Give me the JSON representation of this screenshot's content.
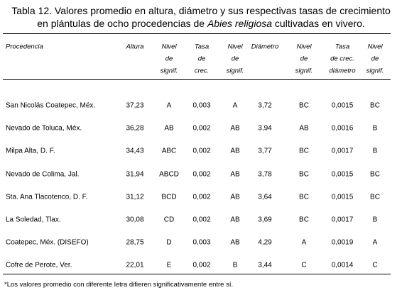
{
  "title": {
    "before": "Tabla 12. Valores promedio en altura, diámetro y sus respectivas tasas de crecimiento en plántulas de ocho procedencias de ",
    "italic": "Abies religiosa",
    "after": " cultivadas en vivero."
  },
  "table": {
    "header": [
      [
        "Procedencia"
      ],
      [
        "Altura"
      ],
      [
        "Nivel",
        "de",
        "signif."
      ],
      [
        "Tasa",
        "de",
        "crec."
      ],
      [
        "Nivel",
        "de",
        "signif."
      ],
      [
        "Diámetro"
      ],
      [
        "Nivel",
        "de",
        "signif."
      ],
      [
        "Tasa",
        "de crec.",
        "diámetro"
      ],
      [
        "Nivel",
        "de",
        "signif."
      ]
    ],
    "rows": [
      [
        "San Nicolás Coatepec, Méx.",
        "37,23",
        "A",
        "0,003",
        "A",
        "3,72",
        "BC",
        "0,0015",
        "BC"
      ],
      [
        "Nevado de Toluca, Méx.",
        "36,28",
        "AB",
        "0,002",
        "AB",
        "3,94",
        "AB",
        "0,0016",
        "B"
      ],
      [
        "Milpa Alta, D. F.",
        "34,43",
        "ABC",
        "0,002",
        "AB",
        "3,77",
        "BC",
        "0,0017",
        "B"
      ],
      [
        "Nevado de Colima, Jal.",
        "31,94",
        "ABCD",
        "0,002",
        "AB",
        "3,78",
        "BC",
        "0,0015",
        "BC"
      ],
      [
        "Sta. Ana Tlacotenco, D. F.",
        "31,12",
        "BCD",
        "0,002",
        "AB",
        "3,64",
        "BC",
        "0,0015",
        "BC"
      ],
      [
        "La Soledad, Tlax.",
        "30,08",
        "CD",
        "0,002",
        "AB",
        "3,69",
        "BC",
        "0,0017",
        "B"
      ],
      [
        "Coatepec, Méx. (DISEFO)",
        "28,75",
        "D",
        "0,003",
        "AB",
        "4,29",
        "A",
        "0,0019",
        "A"
      ],
      [
        "Cofre de Perote, Ver.",
        "22,01",
        "E",
        "0,002",
        "B",
        "3,44",
        "C",
        "0,0014",
        "C"
      ]
    ]
  },
  "footnote": "*Los valores promedio con diferente letra difieren significativamente entre sí."
}
